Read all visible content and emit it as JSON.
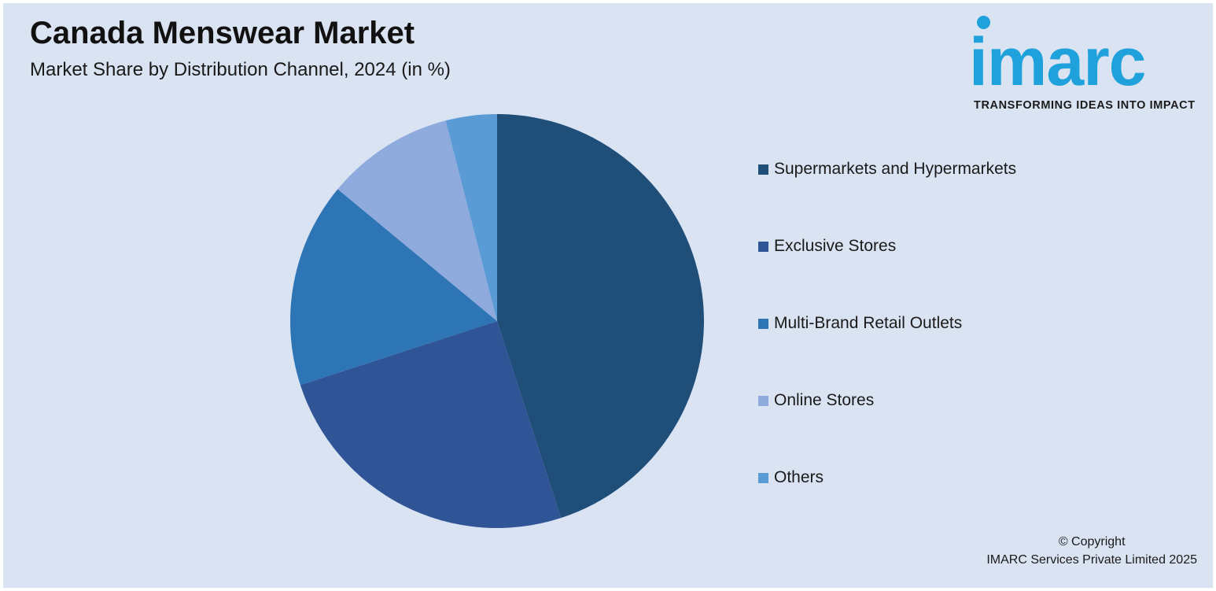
{
  "header": {
    "title": "Canada Menswear Market",
    "subtitle": "Market Share by Distribution Channel, 2024 (in %)"
  },
  "logo": {
    "wordmark": "imarc",
    "tagline": "TRANSFORMING IDEAS INTO IMPACT",
    "color": "#1fa1dc"
  },
  "chart_data": {
    "type": "pie",
    "title": "Canada Menswear Market",
    "subtitle": "Market Share by Distribution Channel, 2024 (in %)",
    "legend_position": "right",
    "series": [
      {
        "name": "Supermarkets and Hypermarkets",
        "value": 45,
        "color": "#1f4e79"
      },
      {
        "name": "Exclusive Stores",
        "value": 25,
        "color": "#2f5597"
      },
      {
        "name": "Multi-Brand Retail Outlets",
        "value": 16,
        "color": "#2e75b6"
      },
      {
        "name": "Online Stores",
        "value": 10,
        "color": "#8faadc"
      },
      {
        "name": "Others",
        "value": 4,
        "color": "#5b9bd5"
      }
    ]
  },
  "footer": {
    "copyright_line1": "© Copyright",
    "copyright_line2": "IMARC Services Private Limited 2025"
  }
}
